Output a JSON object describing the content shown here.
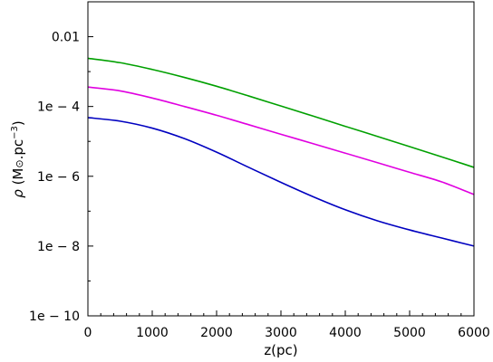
{
  "chart_data": {
    "type": "line",
    "xlabel": "z(pc)",
    "ylabel": "ρ (M⊙.pc⁻³)",
    "ylabel_parts": {
      "rho": "ρ",
      "open": "(M",
      "sun": "⊙",
      "mid": ".pc",
      "exp": "−3",
      "close": ")"
    },
    "xlim": [
      0,
      6000
    ],
    "ylim": [
      1e-10,
      0.1
    ],
    "yscale": "log",
    "grid": false,
    "x_ticks": [
      {
        "value": 0,
        "label": "0"
      },
      {
        "value": 1000,
        "label": "1000"
      },
      {
        "value": 2000,
        "label": "2000"
      },
      {
        "value": 3000,
        "label": "3000"
      },
      {
        "value": 4000,
        "label": "4000"
      },
      {
        "value": 5000,
        "label": "5000"
      },
      {
        "value": 6000,
        "label": "6000"
      }
    ],
    "y_ticks": [
      {
        "value": 1e-10,
        "label": "1e − 10"
      },
      {
        "value": 1e-08,
        "label": "1e − 8"
      },
      {
        "value": 1e-06,
        "label": "1e − 6"
      },
      {
        "value": 0.0001,
        "label": "1e − 4"
      },
      {
        "value": 0.01,
        "label": "0.01"
      }
    ],
    "x": [
      0,
      500,
      1000,
      1500,
      2000,
      2500,
      3000,
      3500,
      4000,
      4500,
      5000,
      5500,
      6000
    ],
    "series": [
      {
        "color": "#00a000",
        "values": [
          0.0024,
          0.0018,
          0.00115,
          0.00068,
          0.00038,
          0.0002,
          0.000103,
          5.3e-05,
          2.7e-05,
          1.39e-05,
          7.1e-06,
          3.6e-06,
          1.8e-06
        ]
      },
      {
        "color": "#e000e0",
        "values": [
          0.00036,
          0.00028,
          0.000175,
          0.0001,
          5.6e-05,
          3e-05,
          1.6e-05,
          8.6e-06,
          4.6e-06,
          2.45e-06,
          1.3e-06,
          6.9e-07,
          3e-07
        ]
      },
      {
        "color": "#0000c0",
        "values": [
          4.8e-05,
          3.8e-05,
          2.4e-05,
          1.2e-05,
          4.9e-06,
          1.8e-06,
          6.7e-07,
          2.6e-07,
          1.1e-07,
          5.3e-08,
          2.9e-08,
          1.7e-08,
          1e-08
        ]
      }
    ]
  }
}
